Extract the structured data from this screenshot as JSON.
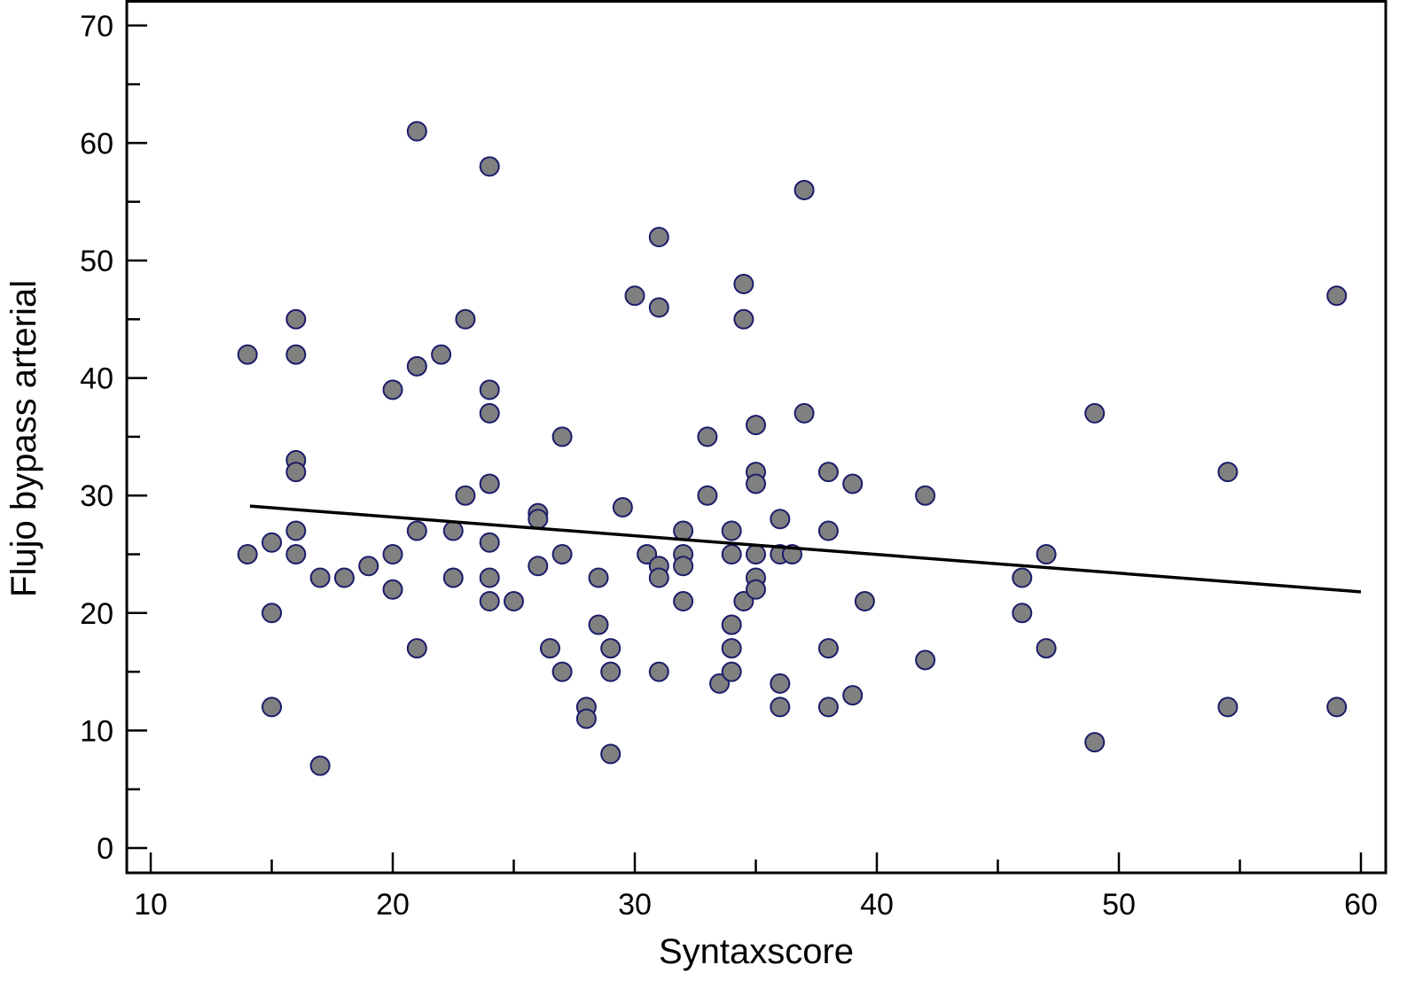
{
  "chart_data": {
    "type": "scatter",
    "title": "",
    "xlabel": "Syntaxscore",
    "ylabel": "Flujo bypass arterial",
    "xlim": [
      10,
      60
    ],
    "ylim": [
      0,
      70
    ],
    "xticks": [
      10,
      20,
      30,
      40,
      50,
      60
    ],
    "yticks": [
      0,
      10,
      20,
      30,
      40,
      50,
      60,
      70
    ],
    "xtick_labels": [
      "10",
      "20",
      "30",
      "40",
      "50",
      "60"
    ],
    "ytick_labels": [
      "0",
      "10",
      "20",
      "30",
      "40",
      "50",
      "60",
      "70"
    ],
    "grid": false,
    "point_fill": "#808080",
    "point_stroke": "#1c1c6b",
    "line_color": "#000000",
    "points": [
      [
        14,
        42
      ],
      [
        14,
        25
      ],
      [
        15,
        26
      ],
      [
        15,
        20
      ],
      [
        15,
        12
      ],
      [
        16,
        45
      ],
      [
        16,
        42
      ],
      [
        16,
        33
      ],
      [
        16,
        32
      ],
      [
        16,
        27
      ],
      [
        16,
        25
      ],
      [
        17,
        23
      ],
      [
        17,
        7
      ],
      [
        18,
        23
      ],
      [
        19,
        24
      ],
      [
        20,
        39
      ],
      [
        20,
        25
      ],
      [
        20,
        22
      ],
      [
        21,
        61
      ],
      [
        21,
        41
      ],
      [
        21,
        27
      ],
      [
        21,
        17
      ],
      [
        22,
        42
      ],
      [
        22.5,
        27
      ],
      [
        22.5,
        23
      ],
      [
        23,
        45
      ],
      [
        23,
        30
      ],
      [
        24,
        58
      ],
      [
        24,
        39
      ],
      [
        24,
        37
      ],
      [
        24,
        31
      ],
      [
        24,
        26
      ],
      [
        24,
        23
      ],
      [
        24,
        21
      ],
      [
        25,
        21
      ],
      [
        26,
        28.5
      ],
      [
        26,
        28
      ],
      [
        26,
        24
      ],
      [
        26.5,
        17
      ],
      [
        27,
        35
      ],
      [
        27,
        25
      ],
      [
        27,
        15
      ],
      [
        28,
        12
      ],
      [
        28,
        11
      ],
      [
        28.5,
        23
      ],
      [
        28.5,
        19
      ],
      [
        29,
        17
      ],
      [
        29,
        15
      ],
      [
        29,
        8
      ],
      [
        29.5,
        29
      ],
      [
        30,
        47
      ],
      [
        30.5,
        25
      ],
      [
        31,
        52
      ],
      [
        31,
        46
      ],
      [
        31,
        24
      ],
      [
        31,
        23
      ],
      [
        31,
        15
      ],
      [
        32,
        27
      ],
      [
        32,
        25
      ],
      [
        32,
        24
      ],
      [
        32,
        21
      ],
      [
        33,
        35
      ],
      [
        33,
        30
      ],
      [
        33.5,
        14
      ],
      [
        34,
        27
      ],
      [
        34,
        25
      ],
      [
        34,
        19
      ],
      [
        34,
        17
      ],
      [
        34,
        15
      ],
      [
        34.5,
        48
      ],
      [
        34.5,
        45
      ],
      [
        34.5,
        21
      ],
      [
        35,
        36
      ],
      [
        35,
        32
      ],
      [
        35,
        31
      ],
      [
        35,
        25
      ],
      [
        35,
        23
      ],
      [
        35,
        22
      ],
      [
        36,
        28
      ],
      [
        36,
        25
      ],
      [
        36,
        14
      ],
      [
        36,
        12
      ],
      [
        36.5,
        25
      ],
      [
        37,
        56
      ],
      [
        37,
        37
      ],
      [
        38,
        32
      ],
      [
        38,
        27
      ],
      [
        38,
        17
      ],
      [
        38,
        12
      ],
      [
        39,
        31
      ],
      [
        39,
        13
      ],
      [
        39.5,
        21
      ],
      [
        42,
        30
      ],
      [
        42,
        16
      ],
      [
        46,
        23
      ],
      [
        46,
        20
      ],
      [
        47,
        25
      ],
      [
        47,
        17
      ],
      [
        49,
        37
      ],
      [
        49,
        9
      ],
      [
        54.5,
        32
      ],
      [
        54.5,
        12
      ],
      [
        59,
        47
      ],
      [
        59,
        12
      ]
    ],
    "regression_line": {
      "x": [
        14.1,
        60
      ],
      "y": [
        29.1,
        21.8
      ]
    }
  }
}
